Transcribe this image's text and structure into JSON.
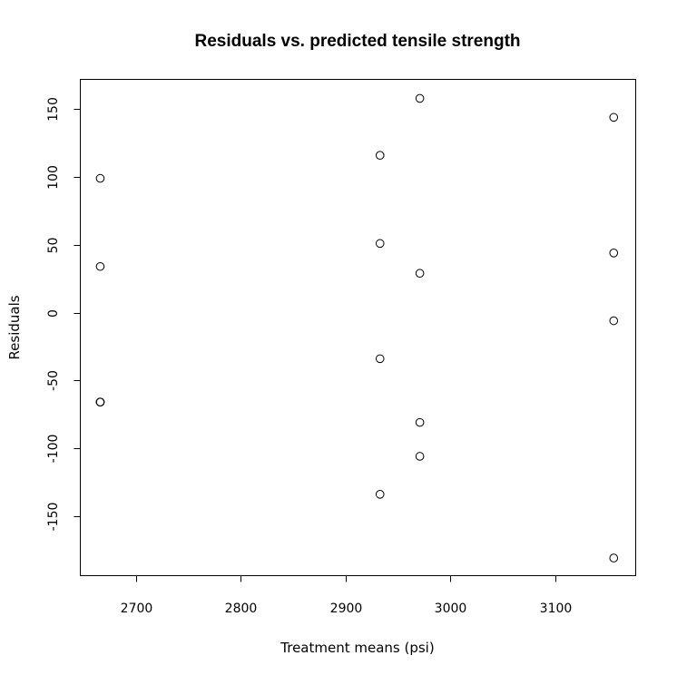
{
  "chart_data": {
    "type": "scatter",
    "title": "Residuals vs. predicted tensile strength",
    "xlabel": "Treatment  means (psi)",
    "ylabel": "Residuals",
    "xlim": [
      2647,
      3177
    ],
    "ylim": [
      -194,
      172
    ],
    "xticks": [
      2700,
      2800,
      2900,
      3000,
      3100
    ],
    "yticks": [
      -150,
      -100,
      -50,
      0,
      50,
      100,
      150
    ],
    "grid": false,
    "marker": "open-circle",
    "points": [
      {
        "x": 2666,
        "y": 99
      },
      {
        "x": 2666,
        "y": 34
      },
      {
        "x": 2666,
        "y": -66
      },
      {
        "x": 2666,
        "y": -66
      },
      {
        "x": 2666,
        "y": -66
      },
      {
        "x": 2933,
        "y": 116
      },
      {
        "x": 2933,
        "y": 51
      },
      {
        "x": 2933,
        "y": -34
      },
      {
        "x": 2933,
        "y": -134
      },
      {
        "x": 2971,
        "y": 158
      },
      {
        "x": 2971,
        "y": 29
      },
      {
        "x": 2971,
        "y": -81
      },
      {
        "x": 2971,
        "y": -106
      },
      {
        "x": 3156,
        "y": 144
      },
      {
        "x": 3156,
        "y": 44
      },
      {
        "x": 3156,
        "y": -6
      },
      {
        "x": 3156,
        "y": -181
      }
    ]
  }
}
